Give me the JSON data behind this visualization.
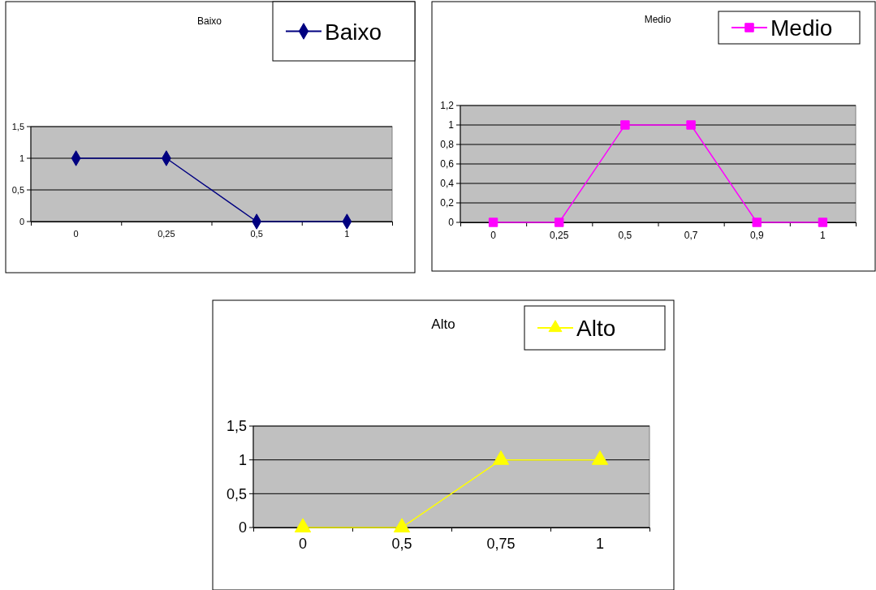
{
  "chart_data": [
    {
      "type": "line",
      "title": "Baixo",
      "categories": [
        "0",
        "0,25",
        "0,5",
        "1"
      ],
      "series": [
        {
          "name": "Baixo",
          "color": "#000080",
          "values": [
            1,
            1,
            0,
            0
          ]
        }
      ],
      "ylim": [
        0,
        1.5
      ],
      "yticks": [
        {
          "value": 0,
          "label": "0"
        },
        {
          "value": 0.5,
          "label": "0,5"
        },
        {
          "value": 1,
          "label": "1"
        },
        {
          "value": 1.5,
          "label": "1,5"
        }
      ],
      "grid": "y",
      "legend": "top right",
      "marker": "diamond"
    },
    {
      "type": "line",
      "title": "Medio",
      "categories": [
        "0",
        "0,25",
        "0,5",
        "0,7",
        "0,9",
        "1"
      ],
      "series": [
        {
          "name": "Medio",
          "color": "#ff00ff",
          "values": [
            0,
            0,
            1,
            1,
            0,
            0
          ]
        }
      ],
      "ylim": [
        0,
        1.2
      ],
      "yticks": [
        {
          "value": 0,
          "label": "0"
        },
        {
          "value": 0.2,
          "label": "0,2"
        },
        {
          "value": 0.4,
          "label": "0,4"
        },
        {
          "value": 0.6,
          "label": "0,6"
        },
        {
          "value": 0.8,
          "label": "0,8"
        },
        {
          "value": 1,
          "label": "1"
        },
        {
          "value": 1.2,
          "label": "1,2"
        }
      ],
      "grid": "y",
      "legend": "top right",
      "marker": "square"
    },
    {
      "type": "line",
      "title": "Alto",
      "categories": [
        "0",
        "0,5",
        "0,75",
        "1"
      ],
      "series": [
        {
          "name": "Alto",
          "color": "#ffff00",
          "values": [
            0,
            0,
            1,
            1
          ]
        }
      ],
      "ylim": [
        0,
        1.5
      ],
      "yticks": [
        {
          "value": 0,
          "label": "0"
        },
        {
          "value": 0.5,
          "label": "0,5"
        },
        {
          "value": 1,
          "label": "1"
        },
        {
          "value": 1.5,
          "label": "1,5"
        }
      ],
      "grid": "y",
      "legend": "top right",
      "marker": "triangle"
    }
  ]
}
